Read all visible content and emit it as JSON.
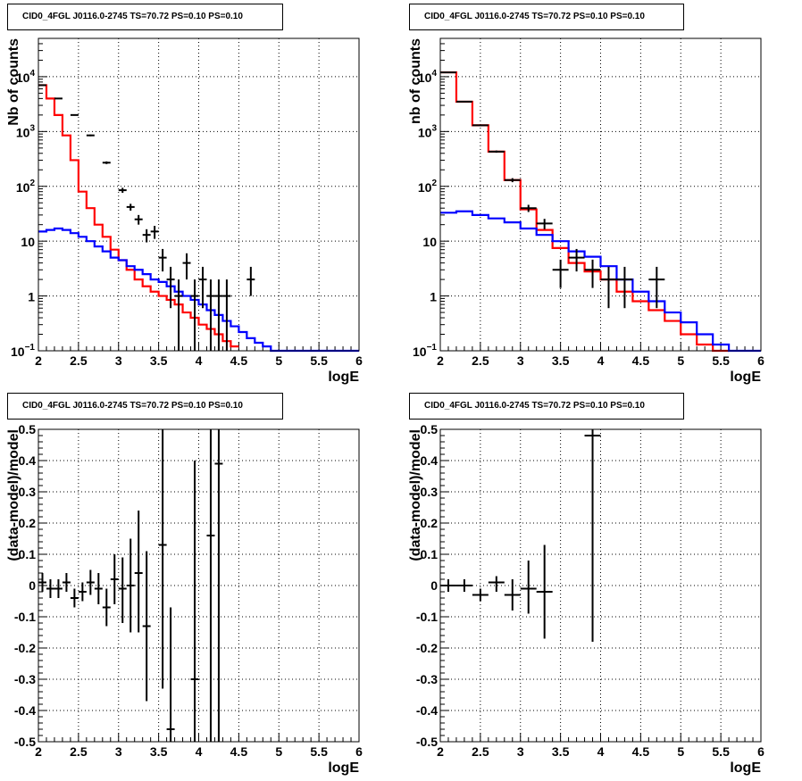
{
  "pads": [
    {
      "title": "CID0_4FGL J0116.0-2745 TS=70.72 PS=0.10 PS=0.10",
      "chart_data": {
        "type": "line",
        "ylog": true,
        "grid": true,
        "xlabel": "logE",
        "ylabel": "Nb of counts",
        "xlim": [
          2,
          6
        ],
        "ylim": [
          0.1,
          50000
        ],
        "xticks": [
          "2",
          "2.5",
          "3",
          "3.5",
          "4",
          "4.5",
          "5",
          "5.5",
          "6"
        ],
        "yticks": [
          {
            "v": 0.1,
            "b": "10",
            "e": "−1"
          },
          {
            "v": 1,
            "b": "1",
            "e": ""
          },
          {
            "v": 10,
            "b": "10",
            "e": ""
          },
          {
            "v": 100,
            "b": "10",
            "e": "2"
          },
          {
            "v": 1000,
            "b": "10",
            "e": "3"
          },
          {
            "v": 10000,
            "b": "10",
            "e": "4"
          }
        ],
        "bin_edges": [
          2.0,
          2.1,
          2.2,
          2.3,
          2.4,
          2.5,
          2.6,
          2.7,
          2.8,
          2.9,
          3.0,
          3.1,
          3.2,
          3.3,
          3.4,
          3.5,
          3.6,
          3.7,
          3.8,
          3.9,
          4.0,
          4.1,
          4.2,
          4.3,
          4.4,
          4.5,
          4.6,
          4.7,
          4.8,
          4.9,
          5.0,
          5.1,
          5.2,
          5.3,
          5.4,
          5.5,
          5.6,
          5.7,
          5.8,
          5.9,
          6.0
        ],
        "series": [
          {
            "name": "",
            "color": "#ff0000",
            "values": [
              7000,
              4000,
              2000,
              850,
              300,
              80,
              40,
              20,
              12,
              7,
              4.5,
              3,
              2,
              1.5,
              1.2,
              1,
              0.85,
              0.7,
              0.5,
              0.4,
              0.3,
              0.25,
              0.2,
              0.15,
              0.12,
              0.1,
              0.1,
              0.1,
              0.1,
              0.1,
              0.1,
              0.1,
              0.1,
              0.1,
              0.1,
              0.1,
              0.1,
              0.1,
              0.1,
              0.1
            ],
            "from": 2.0,
            "to": 4.5
          },
          {
            "name": "",
            "color": "#0000ff",
            "values": [
              15,
              16,
              17,
              16,
              14,
              12,
              10,
              8,
              6.5,
              5,
              4.5,
              3.5,
              3,
              2.5,
              2,
              1.8,
              1.5,
              1.2,
              1.0,
              0.85,
              0.7,
              0.55,
              0.45,
              0.35,
              0.28,
              0.22,
              0.17,
              0.14,
              0.12,
              0.1,
              0.1,
              0.1,
              0.1,
              0.1,
              0.1,
              0.1,
              0.1,
              0.1,
              0.1,
              0.1
            ],
            "from": 2.0,
            "to": 6.0
          }
        ],
        "data_points": [
          {
            "x": 2.05,
            "y": 7000,
            "dx": 0.05,
            "lo": 6900,
            "hi": 7100
          },
          {
            "x": 2.25,
            "y": 4000,
            "dx": 0.05,
            "lo": 3950,
            "hi": 4050
          },
          {
            "x": 2.45,
            "y": 2000,
            "dx": 0.05,
            "lo": 1950,
            "hi": 2050
          },
          {
            "x": 2.65,
            "y": 850,
            "dx": 0.05,
            "lo": 820,
            "hi": 880
          },
          {
            "x": 2.85,
            "y": 270,
            "dx": 0.05,
            "lo": 255,
            "hi": 285
          },
          {
            "x": 3.05,
            "y": 85,
            "dx": 0.05,
            "lo": 76,
            "hi": 94
          },
          {
            "x": 3.15,
            "y": 42,
            "dx": 0.05,
            "lo": 36,
            "hi": 48
          },
          {
            "x": 3.25,
            "y": 25,
            "dx": 0.05,
            "lo": 20,
            "hi": 30
          },
          {
            "x": 3.35,
            "y": 13,
            "dx": 0.05,
            "lo": 9.5,
            "hi": 16.5
          },
          {
            "x": 3.45,
            "y": 15,
            "dx": 0.05,
            "lo": 11,
            "hi": 19
          },
          {
            "x": 3.55,
            "y": 5,
            "dx": 0.05,
            "lo": 2.8,
            "hi": 7.2
          },
          {
            "x": 3.65,
            "y": 2,
            "dx": 0.05,
            "lo": 0.6,
            "hi": 3.4
          },
          {
            "x": 3.75,
            "y": 1,
            "dx": 0.05,
            "lo": 0.1,
            "hi": 2.0
          },
          {
            "x": 3.85,
            "y": 4,
            "dx": 0.05,
            "lo": 2.0,
            "hi": 6.0
          },
          {
            "x": 3.95,
            "y": 1,
            "dx": 0.05,
            "lo": 0.1,
            "hi": 2.0
          },
          {
            "x": 4.05,
            "y": 2,
            "dx": 0.05,
            "lo": 0.6,
            "hi": 3.4
          },
          {
            "x": 4.15,
            "y": 1,
            "dx": 0.05,
            "lo": 0.1,
            "hi": 2.0
          },
          {
            "x": 4.25,
            "y": 1,
            "dx": 0.05,
            "lo": 0.1,
            "hi": 2.0
          },
          {
            "x": 4.35,
            "y": 1,
            "dx": 0.05,
            "lo": 0.1,
            "hi": 2.0
          },
          {
            "x": 4.65,
            "y": 2,
            "dx": 0.05,
            "lo": 1.0,
            "hi": 3.4
          }
        ]
      }
    },
    {
      "title": "CID0_4FGL J0116.0-2745 TS=70.72 PS=0.10 PS=0.10",
      "chart_data": {
        "type": "line",
        "ylog": true,
        "grid": true,
        "xlabel": "logE",
        "ylabel": "nb of counts",
        "xlim": [
          2,
          6
        ],
        "ylim": [
          0.1,
          50000
        ],
        "xticks": [
          "2",
          "2.5",
          "3",
          "3.5",
          "4",
          "4.5",
          "5",
          "5.5",
          "6"
        ],
        "yticks": [
          {
            "v": 0.1,
            "b": "10",
            "e": "−1"
          },
          {
            "v": 1,
            "b": "1",
            "e": ""
          },
          {
            "v": 10,
            "b": "10",
            "e": ""
          },
          {
            "v": 100,
            "b": "10",
            "e": "2"
          },
          {
            "v": 1000,
            "b": "10",
            "e": "3"
          },
          {
            "v": 10000,
            "b": "10",
            "e": "4"
          }
        ],
        "bin_edges": [
          2.0,
          2.2,
          2.4,
          2.6,
          2.8,
          3.0,
          3.2,
          3.4,
          3.6,
          3.8,
          4.0,
          4.2,
          4.4,
          4.6,
          4.8,
          5.0,
          5.2,
          5.4,
          5.6,
          5.8,
          6.0
        ],
        "series": [
          {
            "name": "",
            "color": "#ff0000",
            "values": [
              12000,
              3500,
              1300,
              430,
              130,
              38,
              16,
              7.5,
              4,
              2.8,
              2.0,
              1.2,
              0.8,
              0.55,
              0.35,
              0.2,
              0.13,
              0.1,
              0.1,
              0.1
            ],
            "from": 2.0,
            "to": 5.6
          },
          {
            "name": "",
            "color": "#0000ff",
            "values": [
              33,
              35,
              30,
              26,
              22,
              17,
              13,
              10,
              6.5,
              5.2,
              3.5,
              2.0,
              1.2,
              0.8,
              0.5,
              0.33,
              0.2,
              0.13,
              0.1,
              0.1
            ],
            "from": 2.0,
            "to": 6.0
          }
        ],
        "data_points": [
          {
            "x": 2.1,
            "y": 12000,
            "dx": 0.1,
            "lo": 11800,
            "hi": 12200
          },
          {
            "x": 2.3,
            "y": 3500,
            "dx": 0.1,
            "lo": 3440,
            "hi": 3560
          },
          {
            "x": 2.5,
            "y": 1300,
            "dx": 0.1,
            "lo": 1260,
            "hi": 1340
          },
          {
            "x": 2.7,
            "y": 430,
            "dx": 0.1,
            "lo": 410,
            "hi": 450
          },
          {
            "x": 2.9,
            "y": 130,
            "dx": 0.1,
            "lo": 119,
            "hi": 141
          },
          {
            "x": 3.1,
            "y": 40,
            "dx": 0.1,
            "lo": 34,
            "hi": 46
          },
          {
            "x": 3.3,
            "y": 21,
            "dx": 0.1,
            "lo": 16.5,
            "hi": 25.5
          },
          {
            "x": 3.5,
            "y": 3,
            "dx": 0.1,
            "lo": 1.4,
            "hi": 4.6
          },
          {
            "x": 3.7,
            "y": 5,
            "dx": 0.1,
            "lo": 2.8,
            "hi": 7.2
          },
          {
            "x": 3.9,
            "y": 3,
            "dx": 0.1,
            "lo": 1.4,
            "hi": 4.6
          },
          {
            "x": 4.1,
            "y": 2,
            "dx": 0.1,
            "lo": 0.6,
            "hi": 3.4
          },
          {
            "x": 4.3,
            "y": 2,
            "dx": 0.1,
            "lo": 0.6,
            "hi": 3.4
          },
          {
            "x": 4.7,
            "y": 2,
            "dx": 0.1,
            "lo": 0.6,
            "hi": 3.4
          }
        ]
      }
    },
    {
      "title": "CID0_4FGL J0116.0-2745 TS=70.72 PS=0.10 PS=0.10",
      "chart_data": {
        "type": "scatter",
        "ylog": false,
        "grid": true,
        "xlabel": "logE",
        "ylabel": "(data-model)/model",
        "xlim": [
          2,
          6
        ],
        "ylim": [
          -0.5,
          0.5
        ],
        "xticks": [
          "2",
          "2.5",
          "3",
          "3.5",
          "4",
          "4.5",
          "5",
          "5.5",
          "6"
        ],
        "yticks": [
          "-0.5",
          "-0.4",
          "-0.3",
          "-0.2",
          "-0.1",
          "0",
          "0.1",
          "0.2",
          "0.3",
          "0.4",
          "0.5"
        ],
        "data_points": [
          {
            "x": 2.05,
            "y": 0.01,
            "dx": 0.05,
            "lo": -0.02,
            "hi": 0.04
          },
          {
            "x": 2.15,
            "y": -0.01,
            "dx": 0.05,
            "lo": -0.04,
            "hi": 0.02
          },
          {
            "x": 2.25,
            "y": -0.01,
            "dx": 0.05,
            "lo": -0.04,
            "hi": 0.02
          },
          {
            "x": 2.35,
            "y": 0.01,
            "dx": 0.05,
            "lo": -0.02,
            "hi": 0.04
          },
          {
            "x": 2.45,
            "y": -0.04,
            "dx": 0.05,
            "lo": -0.07,
            "hi": -0.01
          },
          {
            "x": 2.55,
            "y": -0.02,
            "dx": 0.05,
            "lo": -0.05,
            "hi": 0.01
          },
          {
            "x": 2.65,
            "y": 0.01,
            "dx": 0.05,
            "lo": -0.03,
            "hi": 0.05
          },
          {
            "x": 2.75,
            "y": -0.01,
            "dx": 0.05,
            "lo": -0.06,
            "hi": 0.04
          },
          {
            "x": 2.85,
            "y": -0.07,
            "dx": 0.05,
            "lo": -0.13,
            "hi": -0.01
          },
          {
            "x": 2.95,
            "y": 0.02,
            "dx": 0.05,
            "lo": -0.06,
            "hi": 0.1
          },
          {
            "x": 3.05,
            "y": -0.01,
            "dx": 0.05,
            "lo": -0.12,
            "hi": 0.09
          },
          {
            "x": 3.15,
            "y": 0.0,
            "dx": 0.05,
            "lo": -0.15,
            "hi": 0.15
          },
          {
            "x": 3.25,
            "y": 0.04,
            "dx": 0.05,
            "lo": -0.15,
            "hi": 0.24
          },
          {
            "x": 3.35,
            "y": -0.13,
            "dx": 0.05,
            "lo": -0.37,
            "hi": 0.11
          },
          {
            "x": 3.55,
            "y": 0.13,
            "dx": 0.05,
            "lo": -0.33,
            "hi": 0.5
          },
          {
            "x": 3.65,
            "y": -0.46,
            "dx": 0.05,
            "lo": -0.5,
            "hi": -0.07
          },
          {
            "x": 3.95,
            "y": -0.3,
            "dx": 0.05,
            "lo": -0.5,
            "hi": 0.4
          },
          {
            "x": 4.15,
            "y": 0.16,
            "dx": 0.05,
            "lo": -0.5,
            "hi": 0.5
          },
          {
            "x": 4.25,
            "y": 0.39,
            "dx": 0.05,
            "lo": -0.5,
            "hi": 0.5
          }
        ]
      }
    },
    {
      "title": "CID0_4FGL J0116.0-2745 TS=70.72 PS=0.10 PS=0.10",
      "chart_data": {
        "type": "scatter",
        "ylog": false,
        "grid": true,
        "xlabel": "logE",
        "ylabel": "(data-model)/model",
        "xlim": [
          2,
          6
        ],
        "ylim": [
          -0.5,
          0.5
        ],
        "xticks": [
          "2",
          "2.5",
          "3",
          "3.5",
          "4",
          "4.5",
          "5",
          "5.5",
          "6"
        ],
        "yticks": [
          "-0.5",
          "-0.4",
          "-0.3",
          "-0.2",
          "-0.1",
          "0",
          "0.1",
          "0.2",
          "0.3",
          "0.4",
          "0.5"
        ],
        "data_points": [
          {
            "x": 2.1,
            "y": 0.0,
            "dx": 0.1,
            "lo": -0.02,
            "hi": 0.02
          },
          {
            "x": 2.3,
            "y": 0.0,
            "dx": 0.1,
            "lo": -0.02,
            "hi": 0.02
          },
          {
            "x": 2.5,
            "y": -0.03,
            "dx": 0.1,
            "lo": -0.05,
            "hi": -0.01
          },
          {
            "x": 2.7,
            "y": 0.01,
            "dx": 0.1,
            "lo": -0.02,
            "hi": 0.03
          },
          {
            "x": 2.9,
            "y": -0.03,
            "dx": 0.1,
            "lo": -0.08,
            "hi": 0.02
          },
          {
            "x": 3.1,
            "y": -0.01,
            "dx": 0.1,
            "lo": -0.09,
            "hi": 0.08
          },
          {
            "x": 3.3,
            "y": -0.02,
            "dx": 0.1,
            "lo": -0.17,
            "hi": 0.13
          },
          {
            "x": 3.9,
            "y": 0.48,
            "dx": 0.1,
            "lo": -0.18,
            "hi": 0.5
          }
        ]
      }
    }
  ]
}
